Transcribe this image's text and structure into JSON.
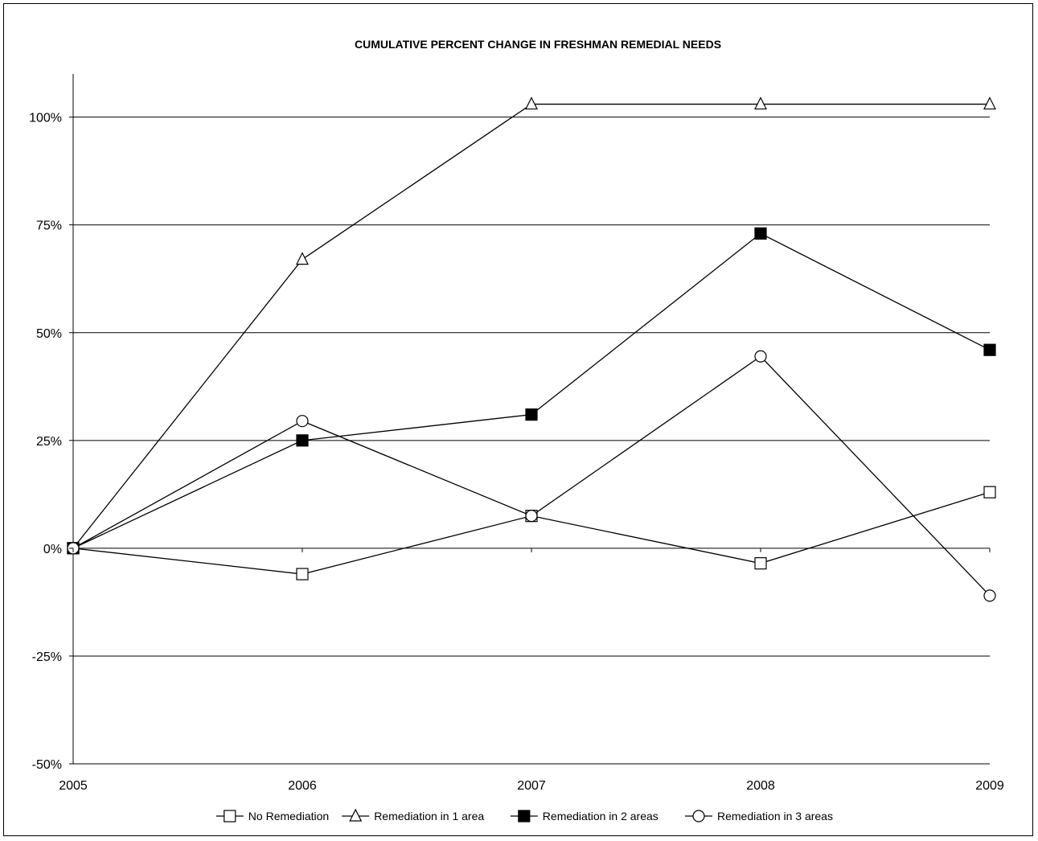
{
  "chart_data": {
    "type": "line",
    "title": "CUMULATIVE PERCENT CHANGE IN FRESHMAN REMEDIAL NEEDS",
    "xlabel": "",
    "ylabel": "",
    "categories": [
      "2005",
      "2006",
      "2007",
      "2008",
      "2009"
    ],
    "ylim": [
      -50,
      110
    ],
    "yticks": [
      -50,
      -25,
      0,
      25,
      50,
      75,
      100
    ],
    "ytick_labels": [
      "-50%",
      "-25%",
      "0%",
      "25%",
      "50%",
      "75%",
      "100%"
    ],
    "grid": "horizontal",
    "legend_position": "bottom",
    "series": [
      {
        "name": "No Remediation",
        "marker": "square-open",
        "values": [
          0,
          -6,
          7.5,
          -3.5,
          13
        ]
      },
      {
        "name": "Remediation in 1 area",
        "marker": "triangle-open",
        "values": [
          0,
          67,
          103,
          103,
          103
        ]
      },
      {
        "name": "Remediation in 2 areas",
        "marker": "square-filled",
        "values": [
          0,
          25,
          31,
          73,
          46
        ]
      },
      {
        "name": "Remediation in 3 areas",
        "marker": "circle-open",
        "values": [
          0,
          29.5,
          7.5,
          44.5,
          -11
        ]
      }
    ],
    "colors": {
      "line": "#000000",
      "grid": "#000000",
      "background": "#ffffff"
    }
  }
}
